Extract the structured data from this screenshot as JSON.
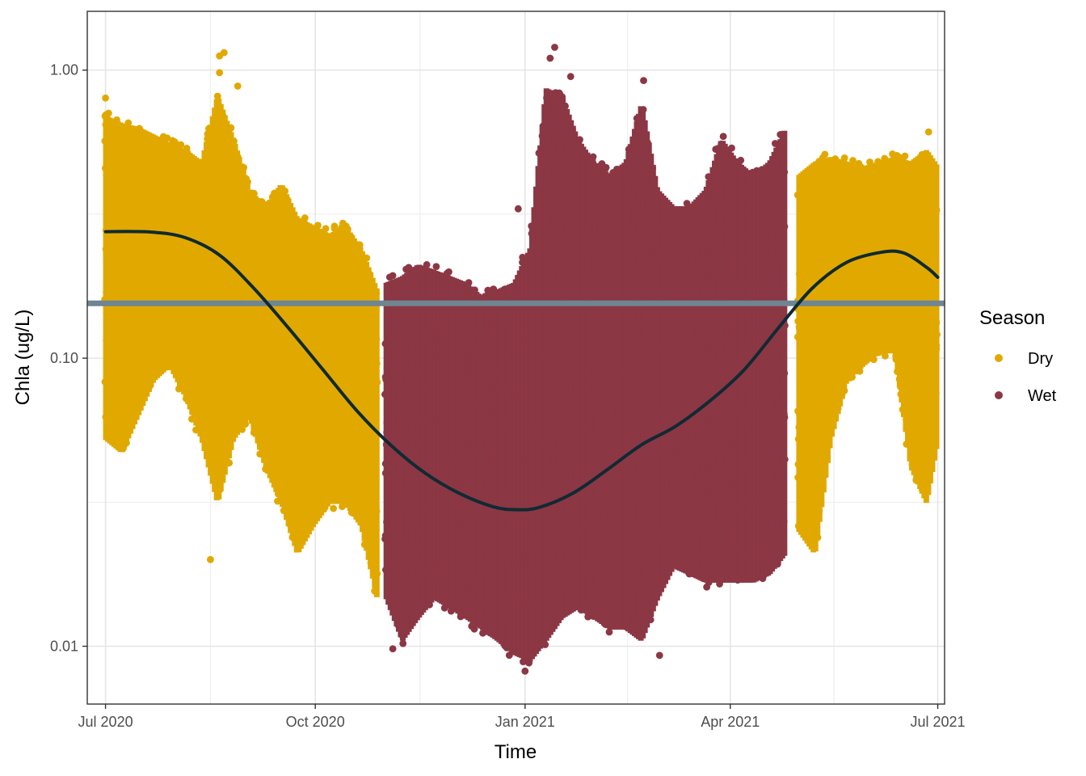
{
  "chart_data": {
    "type": "scatter",
    "xlabel": "Time",
    "ylabel": "Chla (ug/L)",
    "x_domain": [
      "2020-06-23",
      "2021-07-04"
    ],
    "y_scale": "log10",
    "ylim": [
      0.0063,
      1.6
    ],
    "x_ticks": [
      {
        "date": "2020-07-01",
        "label": "Jul 2020"
      },
      {
        "date": "2020-10-01",
        "label": "Oct 2020"
      },
      {
        "date": "2021-01-01",
        "label": "Jan 2021"
      },
      {
        "date": "2021-04-01",
        "label": "Apr 2021"
      },
      {
        "date": "2021-07-01",
        "label": "Jul 2021"
      }
    ],
    "y_ticks": [
      {
        "value": 0.01,
        "label": "0.01"
      },
      {
        "value": 0.1,
        "label": "0.10"
      },
      {
        "value": 1.0,
        "label": "1.00"
      }
    ],
    "grid": true,
    "legend": {
      "title": "Season",
      "position": "right",
      "entries": [
        {
          "name": "Dry",
          "color": "#E1A900"
        },
        {
          "name": "Wet",
          "color": "#8C3744"
        }
      ]
    },
    "series": [
      {
        "name": "Dry",
        "color": "#E1A900",
        "ranges": [
          {
            "date": "2020-07-01",
            "low": 0.05,
            "high": 0.72
          },
          {
            "date": "2020-07-08",
            "low": 0.045,
            "high": 0.68
          },
          {
            "date": "2020-07-15",
            "low": 0.06,
            "high": 0.66
          },
          {
            "date": "2020-07-22",
            "low": 0.08,
            "high": 0.62
          },
          {
            "date": "2020-07-29",
            "low": 0.09,
            "high": 0.58
          },
          {
            "date": "2020-08-05",
            "low": 0.07,
            "high": 0.55
          },
          {
            "date": "2020-08-12",
            "low": 0.05,
            "high": 0.5
          },
          {
            "date": "2020-08-19",
            "low": 0.03,
            "high": 0.85
          },
          {
            "date": "2020-08-26",
            "low": 0.05,
            "high": 0.6
          },
          {
            "date": "2020-09-02",
            "low": 0.06,
            "high": 0.4
          },
          {
            "date": "2020-09-09",
            "low": 0.04,
            "high": 0.35
          },
          {
            "date": "2020-09-16",
            "low": 0.03,
            "high": 0.42
          },
          {
            "date": "2020-09-23",
            "low": 0.02,
            "high": 0.32
          },
          {
            "date": "2020-09-30",
            "low": 0.025,
            "high": 0.3
          },
          {
            "date": "2020-10-07",
            "low": 0.03,
            "high": 0.28
          },
          {
            "date": "2020-10-14",
            "low": 0.03,
            "high": 0.3
          },
          {
            "date": "2020-10-21",
            "low": 0.025,
            "high": 0.25
          },
          {
            "date": "2020-10-28",
            "low": 0.014,
            "high": 0.18
          },
          {
            "date": "2021-05-01",
            "low": 0.024,
            "high": 0.45
          },
          {
            "date": "2021-05-08",
            "low": 0.02,
            "high": 0.5
          },
          {
            "date": "2021-05-15",
            "low": 0.05,
            "high": 0.52
          },
          {
            "date": "2021-05-22",
            "low": 0.08,
            "high": 0.5
          },
          {
            "date": "2021-05-29",
            "low": 0.09,
            "high": 0.48
          },
          {
            "date": "2021-06-05",
            "low": 0.1,
            "high": 0.5
          },
          {
            "date": "2021-06-12",
            "low": 0.1,
            "high": 0.52
          },
          {
            "date": "2021-06-19",
            "low": 0.04,
            "high": 0.5
          },
          {
            "date": "2021-06-26",
            "low": 0.03,
            "high": 0.55
          },
          {
            "date": "2021-07-01",
            "low": 0.05,
            "high": 0.48
          }
        ],
        "highlights": [
          {
            "date": "2020-07-01",
            "value": 0.8
          },
          {
            "date": "2020-08-20",
            "value": 1.12
          },
          {
            "date": "2020-08-22",
            "value": 1.15
          },
          {
            "date": "2020-08-20",
            "value": 0.98
          },
          {
            "date": "2020-08-28",
            "value": 0.88
          },
          {
            "date": "2020-08-16",
            "value": 0.02
          },
          {
            "date": "2021-06-27",
            "value": 0.61
          }
        ]
      },
      {
        "name": "Wet",
        "color": "#8C3744",
        "ranges": [
          {
            "date": "2020-11-01",
            "low": 0.014,
            "high": 0.19
          },
          {
            "date": "2020-11-08",
            "low": 0.01,
            "high": 0.2
          },
          {
            "date": "2020-11-15",
            "low": 0.012,
            "high": 0.22
          },
          {
            "date": "2020-11-22",
            "low": 0.014,
            "high": 0.21
          },
          {
            "date": "2020-11-29",
            "low": 0.013,
            "high": 0.2
          },
          {
            "date": "2020-12-06",
            "low": 0.012,
            "high": 0.19
          },
          {
            "date": "2020-12-13",
            "low": 0.011,
            "high": 0.17
          },
          {
            "date": "2020-12-20",
            "low": 0.01,
            "high": 0.18
          },
          {
            "date": "2020-12-27",
            "low": 0.009,
            "high": 0.19
          },
          {
            "date": "2021-01-03",
            "low": 0.0085,
            "high": 0.25
          },
          {
            "date": "2021-01-10",
            "low": 0.01,
            "high": 0.9
          },
          {
            "date": "2021-01-17",
            "low": 0.012,
            "high": 0.85
          },
          {
            "date": "2021-01-24",
            "low": 0.013,
            "high": 0.6
          },
          {
            "date": "2021-01-31",
            "low": 0.012,
            "high": 0.5
          },
          {
            "date": "2021-02-07",
            "low": 0.011,
            "high": 0.45
          },
          {
            "date": "2021-02-14",
            "low": 0.011,
            "high": 0.5
          },
          {
            "date": "2021-02-21",
            "low": 0.01,
            "high": 0.8
          },
          {
            "date": "2021-02-28",
            "low": 0.014,
            "high": 0.4
          },
          {
            "date": "2021-03-07",
            "low": 0.018,
            "high": 0.35
          },
          {
            "date": "2021-03-14",
            "low": 0.017,
            "high": 0.35
          },
          {
            "date": "2021-03-21",
            "low": 0.016,
            "high": 0.4
          },
          {
            "date": "2021-03-28",
            "low": 0.016,
            "high": 0.6
          },
          {
            "date": "2021-04-04",
            "low": 0.016,
            "high": 0.5
          },
          {
            "date": "2021-04-11",
            "low": 0.016,
            "high": 0.45
          },
          {
            "date": "2021-04-18",
            "low": 0.017,
            "high": 0.5
          },
          {
            "date": "2021-04-25",
            "low": 0.02,
            "high": 0.65
          }
        ],
        "highlights": [
          {
            "date": "2021-01-14",
            "value": 1.2
          },
          {
            "date": "2021-01-12",
            "value": 1.1
          },
          {
            "date": "2021-01-21",
            "value": 0.95
          },
          {
            "date": "2021-02-22",
            "value": 0.92
          },
          {
            "date": "2020-12-29",
            "value": 0.33
          },
          {
            "date": "2021-01-01",
            "value": 0.0082
          },
          {
            "date": "2021-03-01",
            "value": 0.0093
          },
          {
            "date": "2020-11-04",
            "value": 0.0098
          }
        ]
      }
    ],
    "smooth_line": {
      "color": "#0F2A33",
      "points": [
        {
          "date": "2020-07-01",
          "value": 0.275
        },
        {
          "date": "2020-07-21",
          "value": 0.274
        },
        {
          "date": "2020-08-05",
          "value": 0.262
        },
        {
          "date": "2020-08-20",
          "value": 0.228
        },
        {
          "date": "2020-09-04",
          "value": 0.175
        },
        {
          "date": "2020-09-19",
          "value": 0.128
        },
        {
          "date": "2020-10-04",
          "value": 0.092
        },
        {
          "date": "2020-10-19",
          "value": 0.066
        },
        {
          "date": "2020-11-03",
          "value": 0.05
        },
        {
          "date": "2020-11-18",
          "value": 0.04
        },
        {
          "date": "2020-12-03",
          "value": 0.034
        },
        {
          "date": "2020-12-18",
          "value": 0.0305
        },
        {
          "date": "2020-12-28",
          "value": 0.0298
        },
        {
          "date": "2021-01-07",
          "value": 0.0303
        },
        {
          "date": "2021-01-22",
          "value": 0.034
        },
        {
          "date": "2021-02-06",
          "value": 0.041
        },
        {
          "date": "2021-02-21",
          "value": 0.05
        },
        {
          "date": "2021-03-08",
          "value": 0.058
        },
        {
          "date": "2021-03-23",
          "value": 0.071
        },
        {
          "date": "2021-04-07",
          "value": 0.091
        },
        {
          "date": "2021-04-22",
          "value": 0.127
        },
        {
          "date": "2021-05-07",
          "value": 0.175
        },
        {
          "date": "2021-05-22",
          "value": 0.215
        },
        {
          "date": "2021-06-06",
          "value": 0.233
        },
        {
          "date": "2021-06-16",
          "value": 0.232
        },
        {
          "date": "2021-06-26",
          "value": 0.207
        },
        {
          "date": "2021-07-01",
          "value": 0.191
        }
      ]
    },
    "reference_line": {
      "value": 0.155,
      "color": "#6F8592"
    }
  }
}
